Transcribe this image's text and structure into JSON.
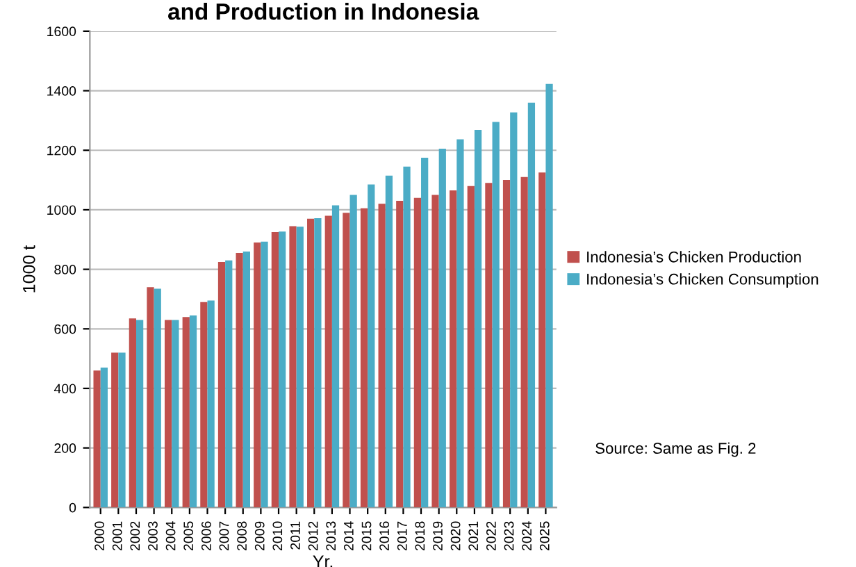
{
  "chart_data": {
    "type": "bar",
    "title": "and Production in Indonesia",
    "xlabel": "Yr.",
    "ylabel": "1000 t",
    "categories": [
      "2000",
      "2001",
      "2002",
      "2003",
      "2004",
      "2005",
      "2006",
      "2007",
      "2008",
      "2009",
      "2010",
      "2011",
      "2012",
      "2013",
      "2014",
      "2015",
      "2016",
      "2017",
      "2018",
      "2019",
      "2020",
      "2021",
      "2022",
      "2023",
      "2024",
      "2025"
    ],
    "series": [
      {
        "name": "Indonesia’s Chicken Production",
        "color": "#c0504d",
        "values": [
          460,
          520,
          635,
          740,
          630,
          640,
          690,
          825,
          855,
          890,
          925,
          945,
          970,
          980,
          990,
          1005,
          1020,
          1030,
          1040,
          1050,
          1065,
          1080,
          1090,
          1100,
          1110,
          1125
        ]
      },
      {
        "name": "Indonesia’s Chicken Consumption",
        "color": "#4bacc6",
        "values": [
          470,
          520,
          630,
          735,
          630,
          645,
          695,
          830,
          860,
          893,
          927,
          943,
          972,
          1015,
          1050,
          1085,
          1115,
          1145,
          1175,
          1205,
          1237,
          1268,
          1295,
          1327,
          1360,
          1423
        ]
      }
    ],
    "ylim": [
      0,
      1600
    ],
    "yticks": [
      0,
      200,
      400,
      600,
      800,
      1000,
      1200,
      1400,
      1600
    ],
    "grid": "y",
    "legend": "right",
    "annotations": [
      "Source: Same as Fig. 2"
    ]
  }
}
